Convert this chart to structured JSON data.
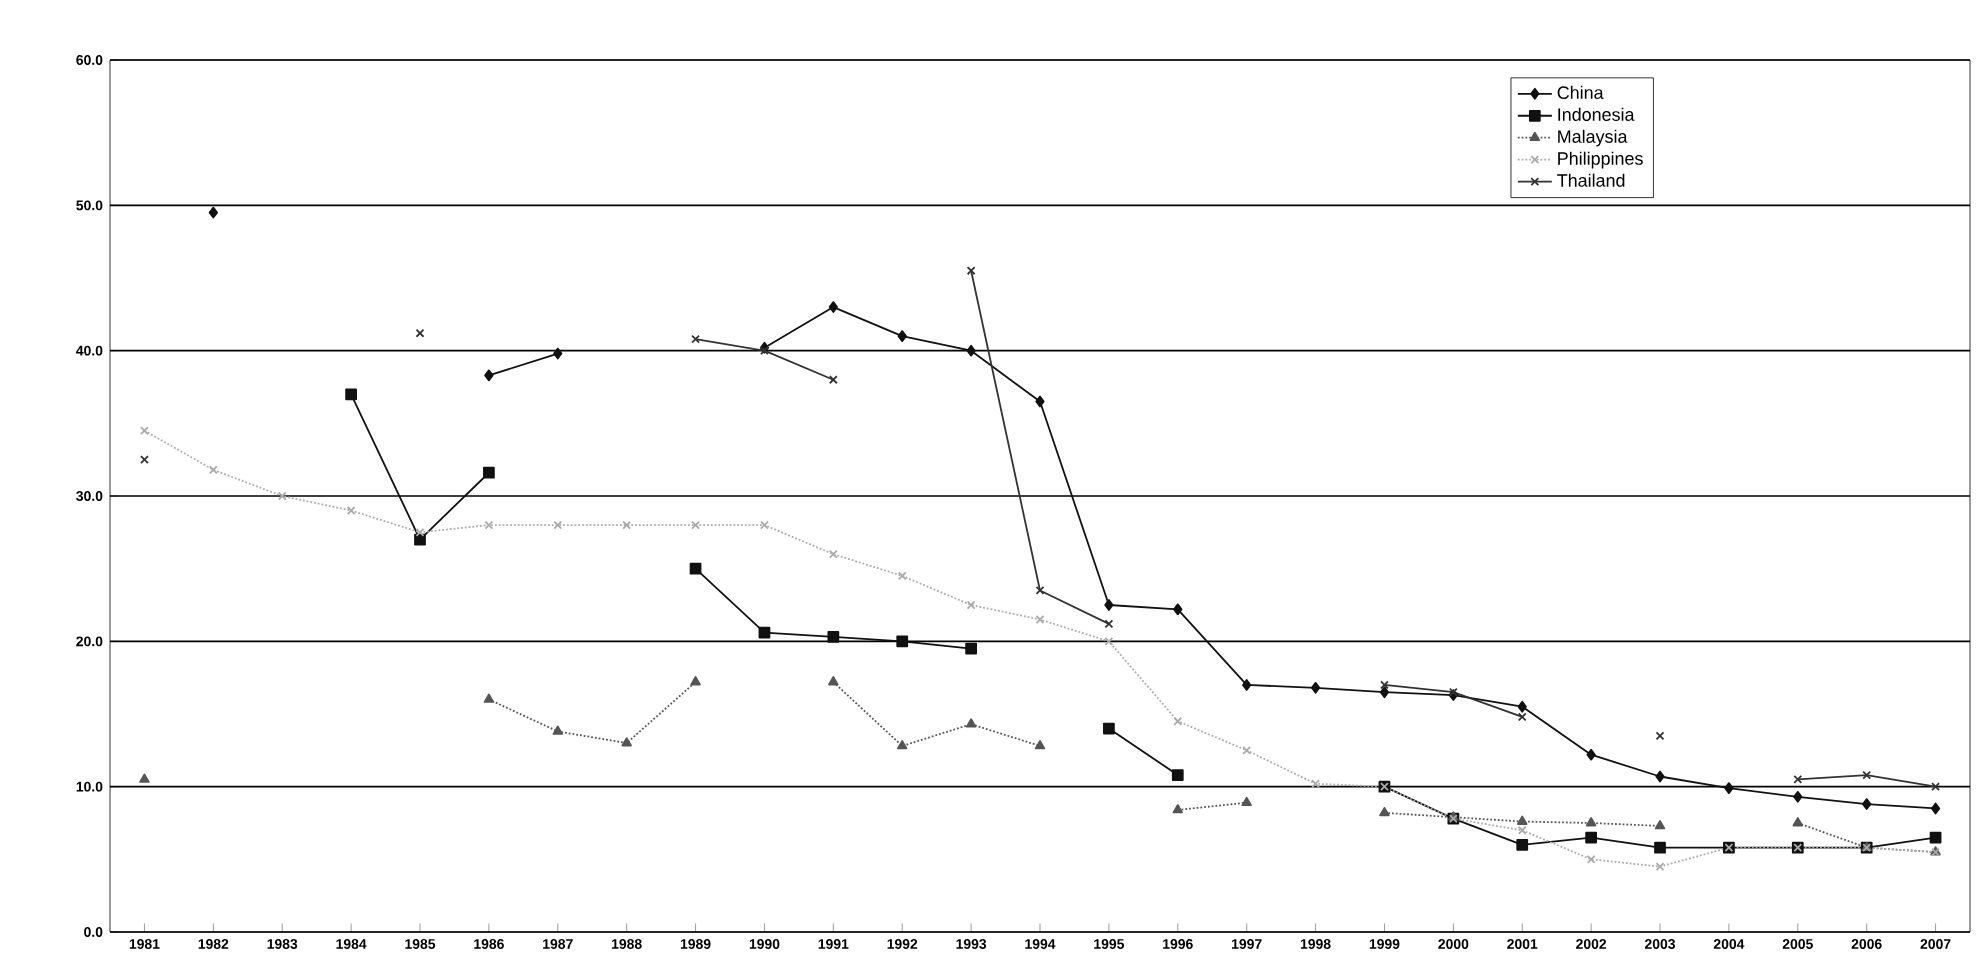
{
  "chart_data": {
    "type": "line",
    "categories": [
      "1981",
      "1982",
      "1983",
      "1984",
      "1985",
      "1986",
      "1987",
      "1988",
      "1989",
      "1990",
      "1991",
      "1992",
      "1993",
      "1994",
      "1995",
      "1996",
      "1997",
      "1998",
      "1999",
      "2000",
      "2001",
      "2002",
      "2003",
      "2004",
      "2005",
      "2006",
      "2007"
    ],
    "series": [
      {
        "name": "China",
        "color": "#111111",
        "marker": "diamond",
        "line_style": "solid",
        "values": [
          null,
          49.5,
          null,
          null,
          null,
          38.3,
          39.8,
          null,
          null,
          40.2,
          43.0,
          41.0,
          40.0,
          36.5,
          22.5,
          22.2,
          17.0,
          16.8,
          16.5,
          16.3,
          15.5,
          12.2,
          10.7,
          9.9,
          9.3,
          8.8,
          8.5
        ]
      },
      {
        "name": "Indonesia",
        "color": "#111111",
        "marker": "square",
        "line_style": "solid",
        "values": [
          null,
          null,
          null,
          37.0,
          27.0,
          31.6,
          null,
          null,
          25.0,
          20.6,
          20.3,
          20.0,
          19.5,
          null,
          14.0,
          10.8,
          null,
          null,
          10.0,
          7.8,
          6.0,
          6.5,
          5.8,
          5.8,
          5.8,
          5.8,
          6.5
        ]
      },
      {
        "name": "Malaysia",
        "color": "#555555",
        "marker": "triangle",
        "line_style": "dotted",
        "values": [
          10.5,
          null,
          null,
          null,
          null,
          16.0,
          13.8,
          13.0,
          17.2,
          null,
          17.2,
          12.8,
          14.3,
          12.8,
          null,
          8.4,
          8.9,
          null,
          8.2,
          7.9,
          7.6,
          7.5,
          7.3,
          null,
          7.5,
          5.8,
          5.5
        ]
      },
      {
        "name": "Philippines",
        "color": "#aaaaaa",
        "marker": "cross",
        "line_style": "dotted",
        "values": [
          34.5,
          31.8,
          30.0,
          29.0,
          27.5,
          28.0,
          28.0,
          28.0,
          28.0,
          28.0,
          26.0,
          24.5,
          22.5,
          21.5,
          20.0,
          14.5,
          12.5,
          10.2,
          10.0,
          7.8,
          7.0,
          5.0,
          4.5,
          5.8,
          5.8,
          5.8,
          5.5
        ]
      },
      {
        "name": "Thailand",
        "color": "#333333",
        "marker": "cross",
        "line_style": "solid",
        "values": [
          32.5,
          null,
          null,
          null,
          41.2,
          null,
          null,
          null,
          40.8,
          40.0,
          38.0,
          null,
          45.5,
          23.5,
          21.2,
          null,
          null,
          null,
          17.0,
          16.5,
          14.8,
          null,
          13.5,
          null,
          10.5,
          10.8,
          10.0
        ]
      }
    ],
    "ylim": [
      0,
      60
    ],
    "yticks": [
      {
        "value": 0,
        "label": "0.0"
      },
      {
        "value": 10,
        "label": "10.0"
      },
      {
        "value": 20,
        "label": "20.0"
      },
      {
        "value": 30,
        "label": "30.0"
      },
      {
        "value": 40,
        "label": "40.0"
      },
      {
        "value": 50,
        "label": "50.0"
      },
      {
        "value": 60,
        "label": "60.0"
      }
    ],
    "grid": "y",
    "legend": "top right"
  }
}
